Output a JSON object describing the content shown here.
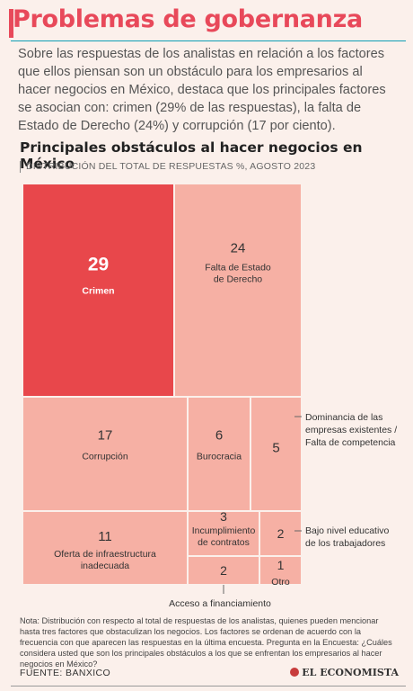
{
  "header": {
    "title": "Problemas de gobernanza",
    "lead": "Sobre las respuestas de los analistas en relación a los factores que ellos piensan son un obstáculo para los empresarios al hacer negocios en México, destaca que los principales factores se asocian con: crimen (29% de las respuestas), la falta de Estado de Derecho (24%) y corrupción (17 por ciento)."
  },
  "chart_data": {
    "type": "treemap",
    "title": "Principales obstáculos al hacer negocios en México",
    "subtitle": "DISTRIBUCIÓN DEL TOTAL DE RESPUESTAS %, AGOSTO 2023",
    "items": [
      {
        "label": "Crimen",
        "value": 29,
        "color": "#e8474b"
      },
      {
        "label": "Falta de Estado de Derecho",
        "value": 24,
        "color": "#f6b0a4"
      },
      {
        "label": "Corrupción",
        "value": 17,
        "color": "#f6b0a4"
      },
      {
        "label": "Oferta de infraestructura inadecuada",
        "value": 11,
        "color": "#f6b0a4"
      },
      {
        "label": "Burocracia",
        "value": 6,
        "color": "#f6b0a4"
      },
      {
        "label": "Dominancia de las empresas existentes / Falta de competencia",
        "value": 5,
        "color": "#f6b0a4"
      },
      {
        "label": "Incumplimiento de contratos",
        "value": 3,
        "color": "#f6b0a4"
      },
      {
        "label": "Bajo nivel educativo de los trabajadores",
        "value": 2,
        "color": "#f6b0a4"
      },
      {
        "label": "Acceso a financiamiento",
        "value": 2,
        "color": "#f6b0a4"
      },
      {
        "label": "Otro",
        "value": 1,
        "color": "#f6b0a4"
      }
    ],
    "callouts": {
      "dominancia": "Dominancia de las empresas existentes / Falta de competencia",
      "bajo": "Bajo nivel educativo de los trabajadores",
      "acceso": "Acceso a financiamiento"
    }
  },
  "footer": {
    "note": "Nota: Distribución con respecto al total de respuestas de los analistas, quienes pueden mencionar hasta tres factores que obstaculizan los negocios. Los factores se ordenan de acuerdo con la frecuencia con que aparecen las respuestas en la última encuesta. Pregunta en la Encuesta: ¿Cuáles considera usted que son los principales obstáculos a los que se enfrentan los empresarios al hacer negocios en México?",
    "source": "FUENTE: BANXICO",
    "brand": "EL ECONOMISTA"
  }
}
